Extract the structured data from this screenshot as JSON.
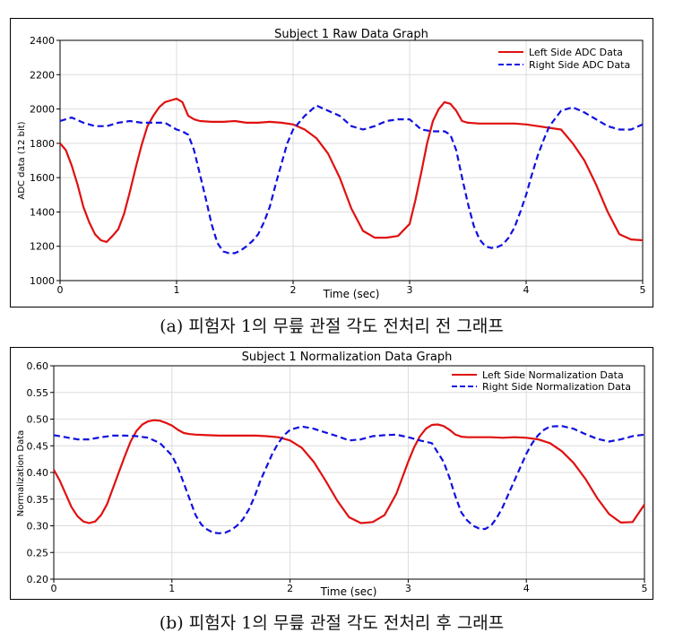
{
  "figures": [
    {
      "caption": "(a) 피험자 1의 무릎 관절 각도 전처리 전 그래프",
      "chart_data": {
        "type": "line",
        "title": "Subject 1 Raw Data Graph",
        "xlabel": "Time (sec)",
        "ylabel": "ADC data (12 bit)",
        "xlim": [
          0,
          5
        ],
        "ylim": [
          1000,
          2400
        ],
        "xticks": [
          "0",
          "1",
          "2",
          "3",
          "4",
          "5"
        ],
        "yticks": [
          "1000",
          "1200",
          "1400",
          "1600",
          "1800",
          "2000",
          "2200",
          "2400"
        ],
        "grid": true,
        "legend_position": "top-right",
        "series": [
          {
            "name": "Left Side ADC Data",
            "color": "#e01010",
            "style": "solid",
            "x": [
              0,
              0.05,
              0.1,
              0.15,
              0.2,
              0.25,
              0.3,
              0.35,
              0.4,
              0.45,
              0.5,
              0.55,
              0.6,
              0.65,
              0.7,
              0.75,
              0.8,
              0.85,
              0.9,
              0.95,
              1.0,
              1.05,
              1.1,
              1.15,
              1.2,
              1.3,
              1.4,
              1.5,
              1.6,
              1.7,
              1.8,
              1.9,
              2.0,
              2.1,
              2.2,
              2.3,
              2.4,
              2.5,
              2.6,
              2.7,
              2.8,
              2.9,
              3.0,
              3.05,
              3.1,
              3.15,
              3.2,
              3.25,
              3.3,
              3.35,
              3.4,
              3.45,
              3.5,
              3.6,
              3.7,
              3.8,
              3.9,
              4.0,
              4.1,
              4.2,
              4.3,
              4.4,
              4.5,
              4.6,
              4.7,
              4.8,
              4.9,
              5.0
            ],
            "y": [
              1800,
              1760,
              1670,
              1560,
              1430,
              1340,
              1270,
              1235,
              1225,
              1260,
              1300,
              1390,
              1520,
              1660,
              1790,
              1900,
              1960,
              2010,
              2040,
              2050,
              2060,
              2040,
              1960,
              1940,
              1930,
              1925,
              1925,
              1930,
              1920,
              1920,
              1925,
              1920,
              1910,
              1880,
              1830,
              1740,
              1600,
              1420,
              1290,
              1250,
              1250,
              1260,
              1330,
              1470,
              1630,
              1800,
              1930,
              2000,
              2040,
              2030,
              1990,
              1930,
              1920,
              1915,
              1915,
              1915,
              1915,
              1910,
              1900,
              1890,
              1880,
              1800,
              1700,
              1560,
              1400,
              1270,
              1240,
              1235
            ]
          },
          {
            "name": "Right Side ADC Data",
            "color": "#1010e0",
            "style": "dashed",
            "x": [
              0,
              0.1,
              0.2,
              0.3,
              0.4,
              0.5,
              0.6,
              0.7,
              0.8,
              0.9,
              1.0,
              1.05,
              1.1,
              1.15,
              1.2,
              1.25,
              1.3,
              1.35,
              1.4,
              1.45,
              1.5,
              1.55,
              1.6,
              1.65,
              1.7,
              1.75,
              1.8,
              1.85,
              1.9,
              1.95,
              2.0,
              2.1,
              2.2,
              2.3,
              2.4,
              2.5,
              2.6,
              2.7,
              2.8,
              2.9,
              3.0,
              3.1,
              3.2,
              3.3,
              3.35,
              3.4,
              3.45,
              3.5,
              3.55,
              3.6,
              3.65,
              3.7,
              3.75,
              3.8,
              3.85,
              3.9,
              3.95,
              4.0,
              4.05,
              4.1,
              4.15,
              4.2,
              4.3,
              4.4,
              4.5,
              4.6,
              4.7,
              4.8,
              4.9,
              5.0
            ],
            "y": [
              1930,
              1950,
              1920,
              1900,
              1900,
              1920,
              1930,
              1920,
              1920,
              1920,
              1880,
              1870,
              1850,
              1760,
              1620,
              1480,
              1330,
              1220,
              1170,
              1160,
              1160,
              1175,
              1200,
              1230,
              1270,
              1340,
              1430,
              1560,
              1680,
              1800,
              1880,
              1960,
              2020,
              1990,
              1960,
              1900,
              1880,
              1900,
              1930,
              1940,
              1940,
              1880,
              1870,
              1870,
              1850,
              1760,
              1600,
              1450,
              1320,
              1240,
              1200,
              1190,
              1195,
              1210,
              1250,
              1310,
              1400,
              1500,
              1620,
              1730,
              1820,
              1900,
              1990,
              2010,
              1980,
              1940,
              1900,
              1880,
              1880,
              1910
            ]
          }
        ]
      }
    },
    {
      "caption": "(b) 피험자 1의 무릎 관절 각도 전처리 후 그래프",
      "chart_data": {
        "type": "line",
        "title": "Subject 1 Normalization Data Graph",
        "xlabel": "Time (sec)",
        "ylabel": "Normalization Data",
        "xlim": [
          0,
          5
        ],
        "ylim": [
          0.2,
          0.6
        ],
        "xticks": [
          "0",
          "1",
          "2",
          "3",
          "4",
          "5"
        ],
        "yticks": [
          "0.20",
          "0.25",
          "0.30",
          "0.35",
          "0.40",
          "0.45",
          "0.50",
          "0.55",
          "0.60"
        ],
        "grid": true,
        "legend_position": "top-right",
        "series": [
          {
            "name": "Left Side Normalization Data",
            "color": "#e01010",
            "style": "solid",
            "x": [
              0,
              0.05,
              0.1,
              0.15,
              0.2,
              0.25,
              0.3,
              0.35,
              0.4,
              0.45,
              0.5,
              0.55,
              0.6,
              0.65,
              0.7,
              0.75,
              0.8,
              0.85,
              0.9,
              0.95,
              1.0,
              1.05,
              1.1,
              1.15,
              1.2,
              1.3,
              1.4,
              1.5,
              1.6,
              1.7,
              1.8,
              1.9,
              2.0,
              2.1,
              2.2,
              2.3,
              2.4,
              2.5,
              2.6,
              2.7,
              2.8,
              2.9,
              3.0,
              3.05,
              3.1,
              3.15,
              3.2,
              3.25,
              3.3,
              3.35,
              3.4,
              3.45,
              3.5,
              3.6,
              3.7,
              3.8,
              3.9,
              4.0,
              4.1,
              4.2,
              4.3,
              4.4,
              4.5,
              4.6,
              4.7,
              4.8,
              4.9,
              5.0
            ],
            "y": [
              0.405,
              0.385,
              0.36,
              0.335,
              0.318,
              0.308,
              0.305,
              0.308,
              0.32,
              0.34,
              0.37,
              0.4,
              0.43,
              0.458,
              0.478,
              0.49,
              0.496,
              0.498,
              0.497,
              0.493,
              0.488,
              0.48,
              0.474,
              0.472,
              0.471,
              0.47,
              0.469,
              0.469,
              0.469,
              0.469,
              0.468,
              0.466,
              0.46,
              0.446,
              0.42,
              0.385,
              0.347,
              0.316,
              0.305,
              0.307,
              0.32,
              0.36,
              0.42,
              0.447,
              0.468,
              0.482,
              0.489,
              0.49,
              0.487,
              0.48,
              0.471,
              0.467,
              0.466,
              0.466,
              0.466,
              0.465,
              0.466,
              0.465,
              0.462,
              0.455,
              0.44,
              0.418,
              0.388,
              0.352,
              0.322,
              0.306,
              0.307,
              0.34
            ]
          },
          {
            "name": "Right Side Normalization Data",
            "color": "#1010e0",
            "style": "dashed",
            "x": [
              0,
              0.1,
              0.2,
              0.3,
              0.4,
              0.5,
              0.6,
              0.7,
              0.8,
              0.9,
              1.0,
              1.05,
              1.1,
              1.15,
              1.2,
              1.25,
              1.3,
              1.35,
              1.4,
              1.45,
              1.5,
              1.55,
              1.6,
              1.65,
              1.7,
              1.75,
              1.8,
              1.85,
              1.9,
              1.95,
              2.0,
              2.1,
              2.2,
              2.3,
              2.4,
              2.5,
              2.6,
              2.7,
              2.8,
              2.9,
              3.0,
              3.1,
              3.2,
              3.3,
              3.35,
              3.4,
              3.45,
              3.5,
              3.55,
              3.6,
              3.65,
              3.7,
              3.75,
              3.8,
              3.85,
              3.9,
              3.95,
              4.0,
              4.05,
              4.1,
              4.15,
              4.2,
              4.3,
              4.4,
              4.5,
              4.6,
              4.7,
              4.8,
              4.9,
              5.0
            ],
            "y": [
              0.47,
              0.466,
              0.462,
              0.462,
              0.466,
              0.469,
              0.469,
              0.468,
              0.465,
              0.455,
              0.432,
              0.41,
              0.38,
              0.35,
              0.32,
              0.302,
              0.293,
              0.287,
              0.286,
              0.287,
              0.292,
              0.3,
              0.312,
              0.33,
              0.355,
              0.385,
              0.41,
              0.435,
              0.455,
              0.47,
              0.48,
              0.486,
              0.482,
              0.475,
              0.468,
              0.46,
              0.462,
              0.468,
              0.47,
              0.471,
              0.466,
              0.46,
              0.455,
              0.42,
              0.39,
              0.355,
              0.325,
              0.31,
              0.3,
              0.295,
              0.294,
              0.3,
              0.315,
              0.335,
              0.36,
              0.385,
              0.41,
              0.435,
              0.455,
              0.47,
              0.48,
              0.486,
              0.487,
              0.482,
              0.472,
              0.463,
              0.458,
              0.462,
              0.468,
              0.471
            ]
          }
        ]
      }
    }
  ]
}
